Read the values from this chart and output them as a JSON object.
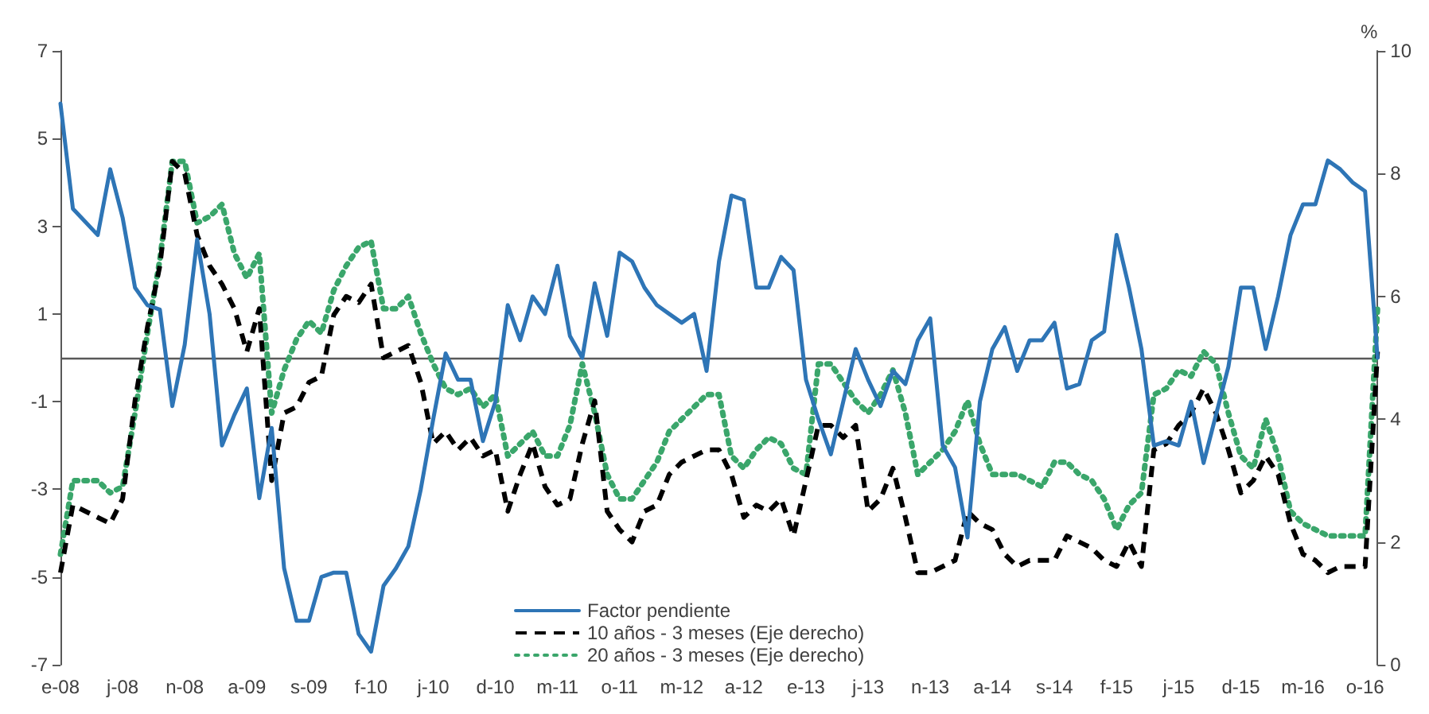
{
  "chart_data": {
    "type": "line",
    "y2label": "%",
    "categories": [
      "e-08",
      null,
      null,
      null,
      null,
      "j-08",
      null,
      null,
      null,
      null,
      "n-08",
      null,
      null,
      null,
      null,
      "a-09",
      null,
      null,
      null,
      null,
      "s-09",
      null,
      null,
      null,
      null,
      "f-10",
      null,
      null,
      null,
      null,
      "j-10",
      null,
      null,
      null,
      null,
      "d-10",
      null,
      null,
      null,
      null,
      "m-11",
      null,
      null,
      null,
      null,
      "o-11",
      null,
      null,
      null,
      null,
      "m-12",
      null,
      null,
      null,
      null,
      "a-12",
      null,
      null,
      null,
      null,
      "e-13",
      null,
      null,
      null,
      null,
      "j-13",
      null,
      null,
      null,
      null,
      "n-13",
      null,
      null,
      null,
      null,
      "a-14",
      null,
      null,
      null,
      null,
      "s-14",
      null,
      null,
      null,
      null,
      "f-15",
      null,
      null,
      null,
      null,
      "j-15",
      null,
      null,
      null,
      null,
      "d-15",
      null,
      null,
      null,
      null,
      "m-16",
      null,
      null,
      null,
      null,
      "o-16",
      null
    ],
    "series": [
      {
        "name": "Factor pendiente",
        "color": "#2e75b6",
        "line_style": "solid",
        "values": [
          5.8,
          3.4,
          3.1,
          2.8,
          4.3,
          3.2,
          1.6,
          1.2,
          1.1,
          -1.1,
          0.3,
          2.7,
          1.0,
          -2.0,
          -1.3,
          -0.7,
          -3.2,
          -1.6,
          -4.8,
          -6.0,
          -6.0,
          -5.0,
          -4.9,
          -4.9,
          -6.3,
          -6.7,
          -5.2,
          -4.8,
          -4.3,
          -3.0,
          -1.4,
          0.1,
          -0.5,
          -0.5,
          -1.9,
          -1.0,
          1.2,
          0.4,
          1.4,
          1.0,
          2.1,
          0.5,
          0.0,
          1.7,
          0.5,
          2.4,
          2.2,
          1.6,
          1.2,
          1.0,
          0.8,
          1.0,
          -0.3,
          2.2,
          3.7,
          3.6,
          1.6,
          1.6,
          2.3,
          2.0,
          -0.5,
          -1.4,
          -2.2,
          -1.0,
          0.2,
          -0.5,
          -1.1,
          -0.3,
          -0.6,
          0.4,
          0.9,
          -2.0,
          -2.5,
          -4.1,
          -1.0,
          0.2,
          0.7,
          -0.3,
          0.4,
          0.4,
          0.8,
          -0.7,
          -0.6,
          0.4,
          0.6,
          2.8,
          1.6,
          0.2,
          -2.0,
          -1.9,
          -2.0,
          -1.0,
          -2.4,
          -1.3,
          -0.2,
          1.6,
          1.6,
          0.2,
          1.4,
          2.8,
          3.5,
          3.5,
          4.5,
          4.3,
          4.0,
          3.8,
          0.0
        ]
      },
      {
        "name": "10 años - 3 meses (Eje derecho)",
        "color": "#000000",
        "line_style": "dashed",
        "axis": "y2",
        "values": [
          1.5,
          2.6,
          2.5,
          2.4,
          2.3,
          2.7,
          4.3,
          5.5,
          6.5,
          8.2,
          8.0,
          7.0,
          6.5,
          6.2,
          5.8,
          5.1,
          5.8,
          3.0,
          4.1,
          4.2,
          4.6,
          4.7,
          5.7,
          6.0,
          5.9,
          6.2,
          5.0,
          5.1,
          5.2,
          4.6,
          3.6,
          3.8,
          3.5,
          3.7,
          3.4,
          3.5,
          2.5,
          3.1,
          3.6,
          2.9,
          2.6,
          2.7,
          3.6,
          4.3,
          2.5,
          2.2,
          2.0,
          2.5,
          2.6,
          3.1,
          3.3,
          3.4,
          3.5,
          3.5,
          3.1,
          2.4,
          2.6,
          2.5,
          2.7,
          2.1,
          3.0,
          3.9,
          3.9,
          3.7,
          3.9,
          2.5,
          2.7,
          3.2,
          2.4,
          1.5,
          1.5,
          1.6,
          1.7,
          2.5,
          2.3,
          2.2,
          1.8,
          1.6,
          1.7,
          1.7,
          1.7,
          2.1,
          2.0,
          1.9,
          1.7,
          1.6,
          2.0,
          1.6,
          3.5,
          3.6,
          3.9,
          4.1,
          4.5,
          4.1,
          3.5,
          2.8,
          3.0,
          3.4,
          3.1,
          2.3,
          1.8,
          1.7,
          1.5,
          1.6,
          1.6,
          1.6,
          5.1
        ]
      },
      {
        "name": "20 años - 3 meses (Eje derecho)",
        "color": "#3aa66b",
        "line_style": "dotted",
        "axis": "y2",
        "values": [
          1.8,
          3.0,
          3.0,
          3.0,
          2.8,
          2.9,
          4.1,
          5.4,
          6.6,
          8.2,
          8.2,
          7.2,
          7.3,
          7.5,
          6.7,
          6.3,
          6.7,
          4.1,
          4.8,
          5.3,
          5.6,
          5.4,
          6.1,
          6.5,
          6.8,
          6.9,
          5.8,
          5.8,
          6.0,
          5.4,
          4.9,
          4.5,
          4.4,
          4.5,
          4.2,
          4.4,
          3.4,
          3.6,
          3.8,
          3.4,
          3.4,
          3.9,
          4.9,
          4.1,
          3.1,
          2.7,
          2.7,
          3.0,
          3.3,
          3.8,
          4.0,
          4.2,
          4.4,
          4.4,
          3.4,
          3.2,
          3.5,
          3.7,
          3.6,
          3.2,
          3.1,
          4.9,
          4.9,
          4.6,
          4.3,
          4.1,
          4.4,
          4.8,
          4.1,
          3.1,
          3.3,
          3.5,
          3.8,
          4.3,
          3.6,
          3.1,
          3.1,
          3.1,
          3.0,
          2.9,
          3.3,
          3.3,
          3.1,
          3.0,
          2.7,
          2.2,
          2.6,
          2.8,
          4.4,
          4.5,
          4.8,
          4.7,
          5.1,
          4.9,
          4.1,
          3.4,
          3.2,
          4.0,
          3.4,
          2.5,
          2.3,
          2.2,
          2.1,
          2.1,
          2.1,
          2.1,
          5.8
        ]
      }
    ],
    "ylim": [
      -7,
      7
    ],
    "yticks": [
      -7,
      -5,
      -3,
      -1,
      1,
      3,
      5,
      7
    ],
    "y2lim": [
      0,
      10
    ],
    "y2ticks": [
      0,
      2,
      4,
      6,
      8,
      10
    ],
    "ref_lines": [
      {
        "axis": "y",
        "value": 0,
        "color": "#595959"
      }
    ],
    "legend": "bottom"
  }
}
